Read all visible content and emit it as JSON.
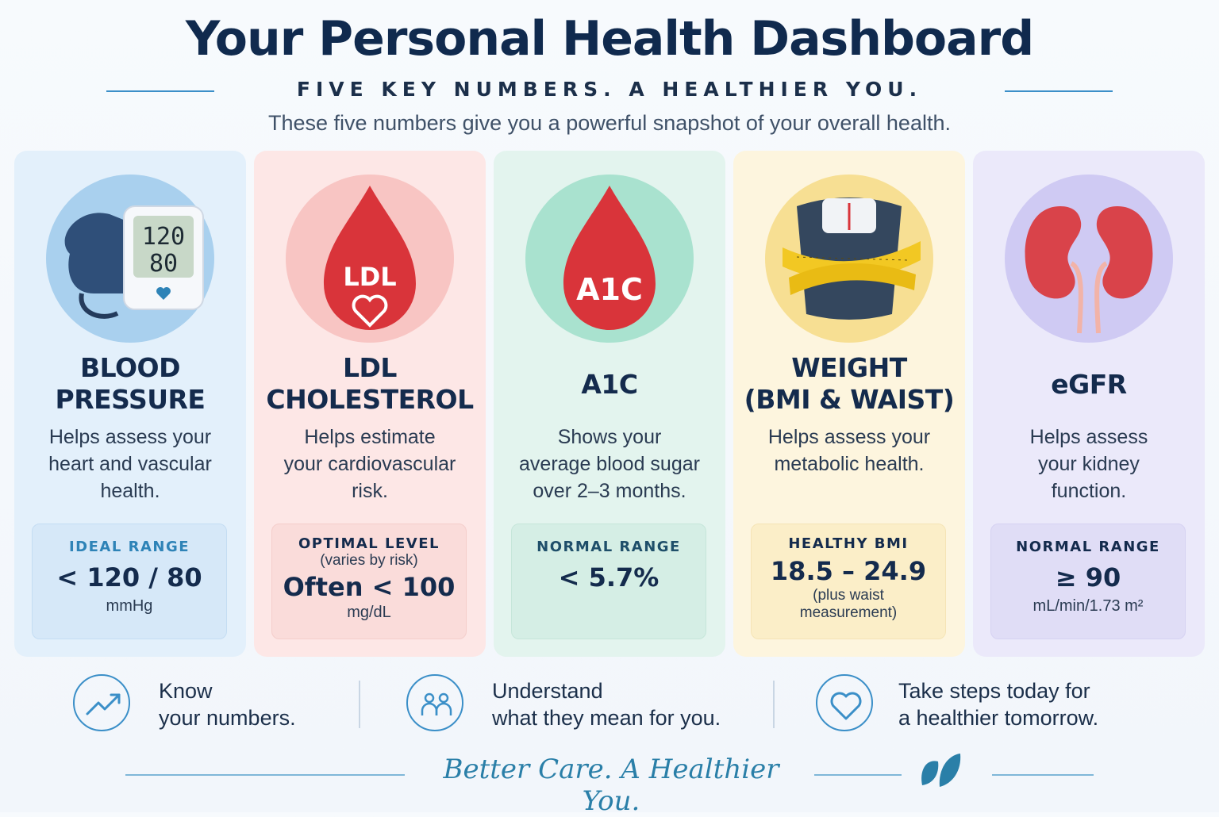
{
  "header": {
    "title": "Your Personal Health Dashboard",
    "subtitle": "FIVE KEY NUMBERS. A HEALTHIER YOU.",
    "intro": "These five numbers give you a powerful snapshot of your overall health."
  },
  "cards": [
    {
      "title_line1": "BLOOD",
      "title_line2": "PRESSURE",
      "desc_lines": [
        "Helps assess your",
        "heart and vascular",
        "health."
      ],
      "range_label": "IDEAL RANGE",
      "range_value": "< 120 / 80",
      "range_unit": "mmHg",
      "icon": "blood-pressure-monitor-icon",
      "monitor_top": "120",
      "monitor_bottom": "80",
      "bg": "#e3f0fb",
      "accent": "#2e83b7"
    },
    {
      "title_line1": "LDL",
      "title_line2": "CHOLESTEROL",
      "desc_lines": [
        "Helps estimate",
        "your cardiovascular",
        "risk."
      ],
      "range_label": "OPTIMAL LEVEL",
      "range_sub": "(varies by risk)",
      "range_value": "Often < 100",
      "range_unit": "mg/dL",
      "icon": "ldl-blood-drop-icon",
      "drop_text": "LDL",
      "bg": "#fde7e6",
      "accent": "#142b4d"
    },
    {
      "title_line1": "A1C",
      "desc_lines": [
        "Shows your",
        "average blood sugar",
        "over 2–3 months."
      ],
      "range_label": "NORMAL RANGE",
      "range_value": "< 5.7%",
      "icon": "a1c-blood-drop-icon",
      "drop_text": "A1C",
      "bg": "#e3f4ee",
      "accent": "#1f4f6a"
    },
    {
      "title_line1": "WEIGHT",
      "title_line2": "(BMI & WAIST)",
      "desc_lines": [
        "Helps assess your",
        "metabolic health."
      ],
      "range_label": "HEALTHY BMI",
      "range_value": "18.5 – 24.9",
      "range_note_lines": [
        "(plus waist",
        "measurement)"
      ],
      "icon": "scale-tape-measure-icon",
      "bg": "#fdf5de",
      "accent": "#142b4d"
    },
    {
      "title_line1": "eGFR",
      "desc_lines": [
        "Helps assess",
        "your kidney",
        "function."
      ],
      "range_label": "NORMAL RANGE",
      "range_value": "≥ 90",
      "range_unit": "mL/min/1.73 m²",
      "icon": "kidneys-icon",
      "bg": "#ebe9fa",
      "accent": "#142b4d"
    }
  ],
  "footer": {
    "items": [
      {
        "line1": "Know",
        "line2": "your numbers.",
        "icon": "trend-up-icon"
      },
      {
        "line1": "Understand",
        "line2": "what they mean for you.",
        "icon": "people-icon"
      },
      {
        "line1": "Take steps today for",
        "line2": "a healthier tomorrow.",
        "icon": "heart-icon"
      }
    ],
    "tagline": "Better Care. A Healthier You.",
    "tagline_icon": "leaf-icon"
  },
  "colors": {
    "title": "#102a4e",
    "rule": "#3b8fc8",
    "drop_red": "#d9343a",
    "tagline": "#2a7fa8"
  }
}
